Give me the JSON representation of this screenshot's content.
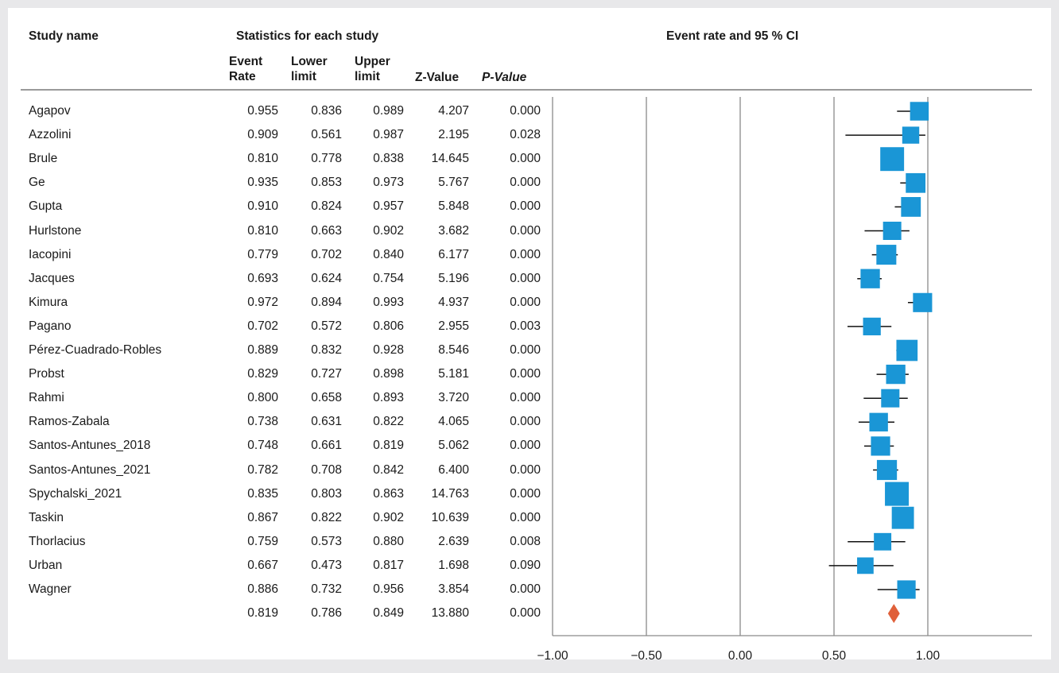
{
  "headers": {
    "study_name": "Study name",
    "stats_group": "Statistics for each study",
    "plot_title": "Event rate and 95 % CI",
    "event_rate": [
      "Event",
      "Rate"
    ],
    "lower_limit": [
      "Lower",
      "limit"
    ],
    "upper_limit": [
      "Upper",
      "limit"
    ],
    "z_value": "Z-Value",
    "p_value": "P-Value"
  },
  "rows": [
    {
      "study": "Agapov",
      "rate": "0.955",
      "lower": "0.836",
      "upper": "0.989",
      "z": "4.207",
      "p": "0.000"
    },
    {
      "study": "Azzolini",
      "rate": "0.909",
      "lower": "0.561",
      "upper": "0.987",
      "z": "2.195",
      "p": "0.028"
    },
    {
      "study": "Brule",
      "rate": "0.810",
      "lower": "0.778",
      "upper": "0.838",
      "z": "14.645",
      "p": "0.000"
    },
    {
      "study": "Ge",
      "rate": "0.935",
      "lower": "0.853",
      "upper": "0.973",
      "z": "5.767",
      "p": "0.000"
    },
    {
      "study": "Gupta",
      "rate": "0.910",
      "lower": "0.824",
      "upper": "0.957",
      "z": "5.848",
      "p": "0.000"
    },
    {
      "study": "Hurlstone",
      "rate": "0.810",
      "lower": "0.663",
      "upper": "0.902",
      "z": "3.682",
      "p": "0.000"
    },
    {
      "study": "Iacopini",
      "rate": "0.779",
      "lower": "0.702",
      "upper": "0.840",
      "z": "6.177",
      "p": "0.000"
    },
    {
      "study": "Jacques",
      "rate": "0.693",
      "lower": "0.624",
      "upper": "0.754",
      "z": "5.196",
      "p": "0.000"
    },
    {
      "study": "Kimura",
      "rate": "0.972",
      "lower": "0.894",
      "upper": "0.993",
      "z": "4.937",
      "p": "0.000"
    },
    {
      "study": "Pagano",
      "rate": "0.702",
      "lower": "0.572",
      "upper": "0.806",
      "z": "2.955",
      "p": "0.003"
    },
    {
      "study": "Pérez-Cuadrado-Robles",
      "rate": "0.889",
      "lower": "0.832",
      "upper": "0.928",
      "z": "8.546",
      "p": "0.000"
    },
    {
      "study": "Probst",
      "rate": "0.829",
      "lower": "0.727",
      "upper": "0.898",
      "z": "5.181",
      "p": "0.000"
    },
    {
      "study": "Rahmi",
      "rate": "0.800",
      "lower": "0.658",
      "upper": "0.893",
      "z": "3.720",
      "p": "0.000"
    },
    {
      "study": "Ramos-Zabala",
      "rate": "0.738",
      "lower": "0.631",
      "upper": "0.822",
      "z": "4.065",
      "p": "0.000"
    },
    {
      "study": "Santos-Antunes_2018",
      "rate": "0.748",
      "lower": "0.661",
      "upper": "0.819",
      "z": "5.062",
      "p": "0.000"
    },
    {
      "study": "Santos-Antunes_2021",
      "rate": "0.782",
      "lower": "0.708",
      "upper": "0.842",
      "z": "6.400",
      "p": "0.000"
    },
    {
      "study": "Spychalski_2021",
      "rate": "0.835",
      "lower": "0.803",
      "upper": "0.863",
      "z": "14.763",
      "p": "0.000"
    },
    {
      "study": "Taskin",
      "rate": "0.867",
      "lower": "0.822",
      "upper": "0.902",
      "z": "10.639",
      "p": "0.000"
    },
    {
      "study": "Thorlacius",
      "rate": "0.759",
      "lower": "0.573",
      "upper": "0.880",
      "z": "2.639",
      "p": "0.008"
    },
    {
      "study": "Urban",
      "rate": "0.667",
      "lower": "0.473",
      "upper": "0.817",
      "z": "1.698",
      "p": "0.090"
    },
    {
      "study": "Wagner",
      "rate": "0.886",
      "lower": "0.732",
      "upper": "0.956",
      "z": "3.854",
      "p": "0.000"
    },
    {
      "study": "",
      "rate": "0.819",
      "lower": "0.786",
      "upper": "0.849",
      "z": "13.880",
      "p": "0.000"
    }
  ],
  "chart_data": {
    "type": "forest",
    "title": "Event rate and 95 % CI",
    "xlim": [
      -1.0,
      1.0
    ],
    "xticks": [
      -1.0,
      -0.5,
      0.0,
      0.5,
      1.0
    ],
    "xtick_labels": [
      "−1.00",
      "−0.50",
      "0.00",
      "0.50",
      "1.00"
    ],
    "grid": "vertical lines at ticks",
    "studies": [
      {
        "name": "Agapov",
        "estimate": 0.955,
        "lower": 0.836,
        "upper": 0.989,
        "weight": 4.207
      },
      {
        "name": "Azzolini",
        "estimate": 0.909,
        "lower": 0.561,
        "upper": 0.987,
        "weight": 2.195
      },
      {
        "name": "Brule",
        "estimate": 0.81,
        "lower": 0.778,
        "upper": 0.838,
        "weight": 14.645
      },
      {
        "name": "Ge",
        "estimate": 0.935,
        "lower": 0.853,
        "upper": 0.973,
        "weight": 5.767
      },
      {
        "name": "Gupta",
        "estimate": 0.91,
        "lower": 0.824,
        "upper": 0.957,
        "weight": 5.848
      },
      {
        "name": "Hurlstone",
        "estimate": 0.81,
        "lower": 0.663,
        "upper": 0.902,
        "weight": 3.682
      },
      {
        "name": "Iacopini",
        "estimate": 0.779,
        "lower": 0.702,
        "upper": 0.84,
        "weight": 6.177
      },
      {
        "name": "Jacques",
        "estimate": 0.693,
        "lower": 0.624,
        "upper": 0.754,
        "weight": 5.196
      },
      {
        "name": "Kimura",
        "estimate": 0.972,
        "lower": 0.894,
        "upper": 0.993,
        "weight": 4.937
      },
      {
        "name": "Pagano",
        "estimate": 0.702,
        "lower": 0.572,
        "upper": 0.806,
        "weight": 2.955
      },
      {
        "name": "Pérez-Cuadrado-Robles",
        "estimate": 0.889,
        "lower": 0.832,
        "upper": 0.928,
        "weight": 8.546
      },
      {
        "name": "Probst",
        "estimate": 0.829,
        "lower": 0.727,
        "upper": 0.898,
        "weight": 5.181
      },
      {
        "name": "Rahmi",
        "estimate": 0.8,
        "lower": 0.658,
        "upper": 0.893,
        "weight": 3.72
      },
      {
        "name": "Ramos-Zabala",
        "estimate": 0.738,
        "lower": 0.631,
        "upper": 0.822,
        "weight": 4.065
      },
      {
        "name": "Santos-Antunes_2018",
        "estimate": 0.748,
        "lower": 0.661,
        "upper": 0.819,
        "weight": 5.062
      },
      {
        "name": "Santos-Antunes_2021",
        "estimate": 0.782,
        "lower": 0.708,
        "upper": 0.842,
        "weight": 6.4
      },
      {
        "name": "Spychalski_2021",
        "estimate": 0.835,
        "lower": 0.803,
        "upper": 0.863,
        "weight": 14.763
      },
      {
        "name": "Taskin",
        "estimate": 0.867,
        "lower": 0.822,
        "upper": 0.902,
        "weight": 10.639
      },
      {
        "name": "Thorlacius",
        "estimate": 0.759,
        "lower": 0.573,
        "upper": 0.88,
        "weight": 2.639
      },
      {
        "name": "Urban",
        "estimate": 0.667,
        "lower": 0.473,
        "upper": 0.817,
        "weight": 1.698
      },
      {
        "name": "Wagner",
        "estimate": 0.886,
        "lower": 0.732,
        "upper": 0.956,
        "weight": 3.854
      }
    ],
    "summary": {
      "estimate": 0.819,
      "lower": 0.786,
      "upper": 0.849
    },
    "colors": {
      "study_marker": "#1a96d6",
      "summary_marker": "#e0603a",
      "whisker": "#111111",
      "gridline": "#8a8a8a"
    }
  }
}
